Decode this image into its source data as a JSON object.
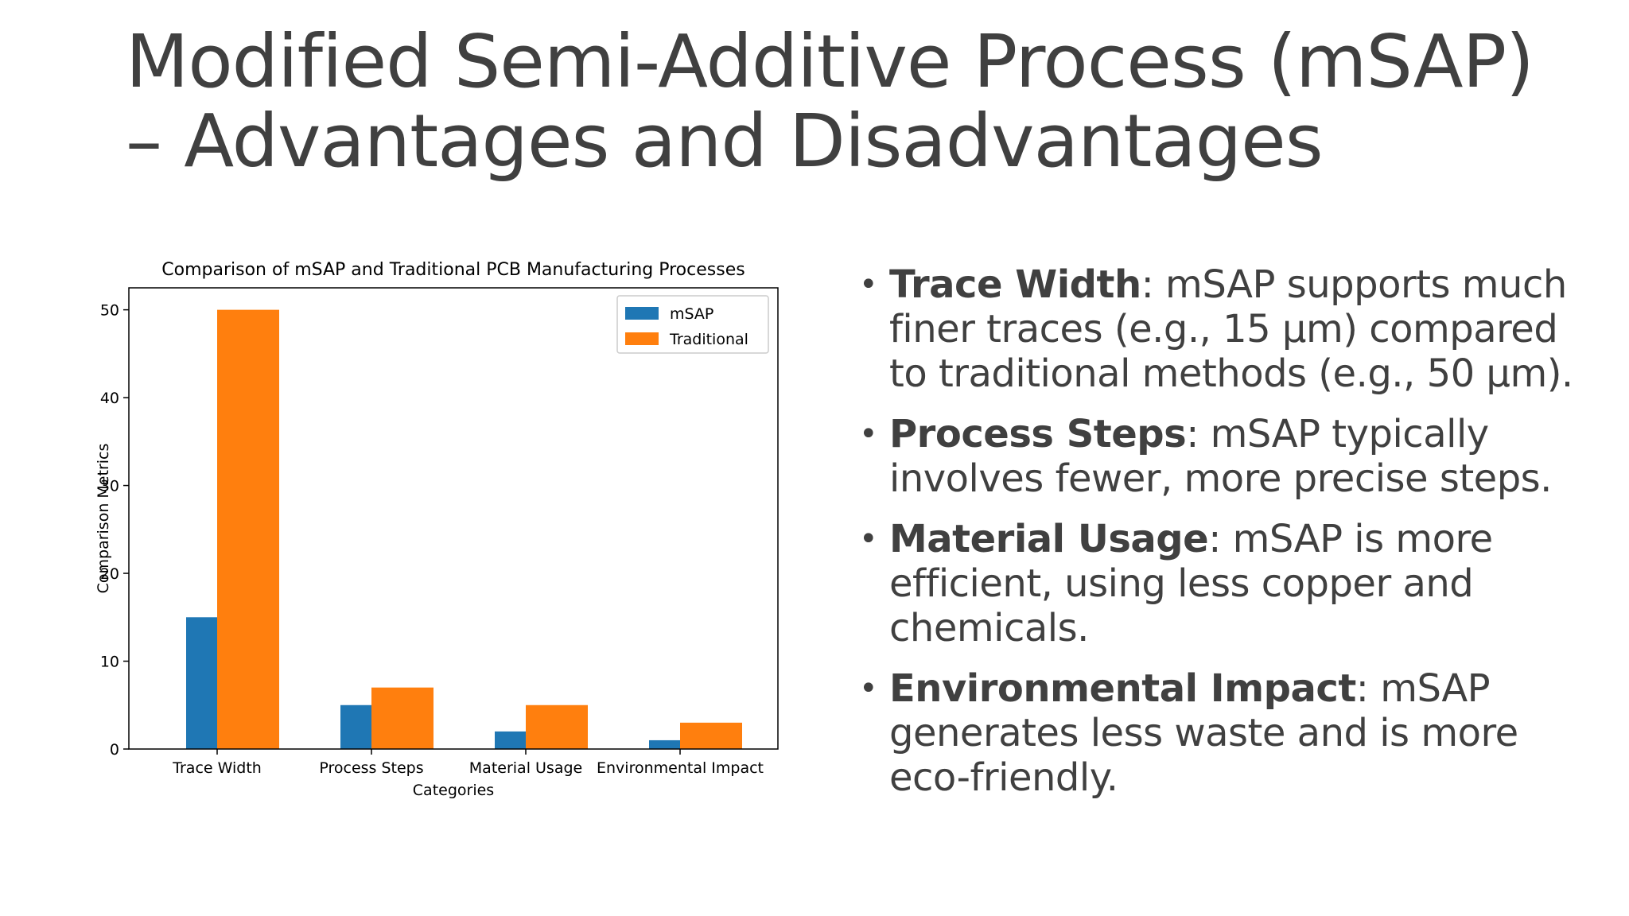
{
  "slide": {
    "title_line1": "Modified Semi-Additive Process (mSAP)",
    "title_line2": "– Advantages and Disadvantages"
  },
  "bullets": [
    {
      "term": "Trace Width",
      "text": ": mSAP supports much finer traces (e.g., 15 µm) compared to traditional methods (e.g., 50 µm)."
    },
    {
      "term": "Process Steps",
      "text": ": mSAP typically involves fewer, more precise steps."
    },
    {
      "term": "Material Usage",
      "text": ": mSAP is more efficient, using less copper and chemicals."
    },
    {
      "term": "Environmental Impact",
      "text": ": mSAP generates less waste and is more eco-friendly."
    }
  ],
  "bullet_glyph": "•",
  "chart_data": {
    "type": "bar",
    "title": "Comparison of mSAP and Traditional PCB Manufacturing Processes",
    "xlabel": "Categories",
    "ylabel": "Comparison Metrics",
    "categories": [
      "Trace Width",
      "Process Steps",
      "Material Usage",
      "Environmental Impact"
    ],
    "series": [
      {
        "name": "mSAP",
        "values": [
          15,
          5,
          2,
          1
        ],
        "color": "#1f77b4"
      },
      {
        "name": "Traditional",
        "values": [
          50,
          7,
          5,
          3
        ],
        "color": "#ff7f0e"
      }
    ],
    "ylim": [
      0,
      52.5
    ],
    "yticks": [
      0,
      10,
      20,
      30,
      40,
      50
    ],
    "legend": "top-right",
    "grid": false
  }
}
